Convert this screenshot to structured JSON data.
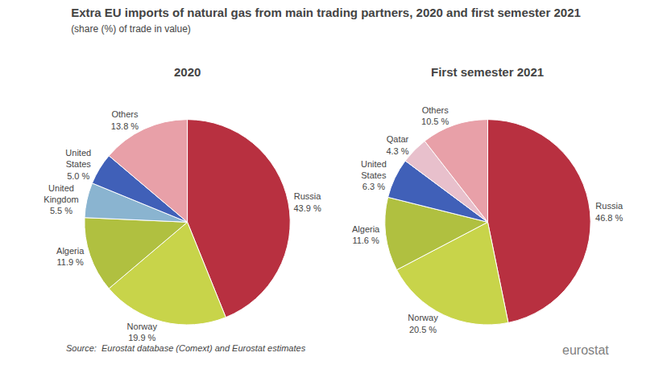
{
  "title": "Extra EU imports of natural gas from main trading partners, 2020 and first semester 2021",
  "subtitle": "(share (%) of trade in value)",
  "annotations": [
    "Source:  Eurostat database (Comext) and Eurostat estimates",
    "eurostat"
  ],
  "chart_data": [
    {
      "type": "pie",
      "title": "2020",
      "categories": [
        "Russia",
        "Norway",
        "Algeria",
        "United\nKingdom",
        "United\nStates",
        "Others"
      ],
      "values": [
        43.9,
        19.9,
        11.9,
        5.5,
        5.0,
        13.8
      ],
      "value_labels": [
        "43.9 %",
        "19.9 %",
        "11.9 %",
        "5.5 %",
        "5.0 %",
        "13.8 %"
      ],
      "colors": [
        "#b83040",
        "#c8d44a",
        "#b0c040",
        "#8ab4d0",
        "#4060b8",
        "#e8a0a8"
      ],
      "data_labels": true
    },
    {
      "type": "pie",
      "title": "First semester 2021",
      "categories": [
        "Russia",
        "Norway",
        "Algeria",
        "United\nStates",
        "Qatar",
        "Others"
      ],
      "values": [
        46.8,
        20.5,
        11.6,
        6.3,
        4.3,
        10.5
      ],
      "value_labels": [
        "46.8 %",
        "20.5 %",
        "11.6 %",
        "6.3 %",
        "4.3 %",
        "10.5 %"
      ],
      "colors": [
        "#b83040",
        "#c8d44a",
        "#b0c040",
        "#4060b8",
        "#e8c0cc",
        "#e8a0a8"
      ],
      "data_labels": true
    }
  ]
}
